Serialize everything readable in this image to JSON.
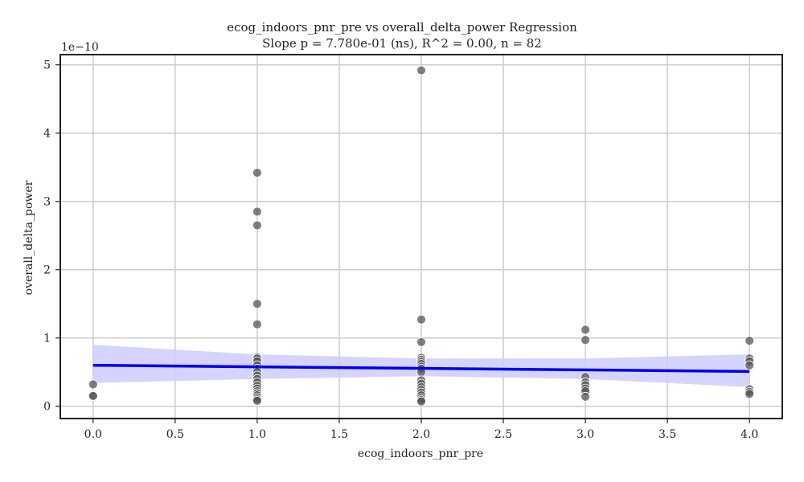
{
  "chart_data": {
    "type": "scatter",
    "title": "ecog_indoors_pnr_pre vs overall_delta_power Regression",
    "subtitle": "Slope p = 7.780e-01 (ns), R^2 = 0.00, n = 82",
    "xlabel": "ecog_indoors_pnr_pre",
    "ylabel": "overall_delta_power",
    "y_offset_label": "1e−10",
    "xlim": [
      -0.2,
      4.2
    ],
    "ylim": [
      -0.18,
      5.15
    ],
    "x_ticks": [
      0.0,
      0.5,
      1.0,
      1.5,
      2.0,
      2.5,
      3.0,
      3.5,
      4.0
    ],
    "x_tick_labels": [
      "0.0",
      "0.5",
      "1.0",
      "1.5",
      "2.0",
      "2.5",
      "3.0",
      "3.5",
      "4.0"
    ],
    "y_ticks": [
      0,
      1,
      2,
      3,
      4,
      5
    ],
    "y_tick_labels": [
      "0",
      "1",
      "2",
      "3",
      "4",
      "5"
    ],
    "grid": true,
    "points": [
      [
        0,
        0.32
      ],
      [
        0,
        0.16
      ],
      [
        0,
        0.15
      ],
      [
        1,
        3.42
      ],
      [
        1,
        2.85
      ],
      [
        1,
        2.65
      ],
      [
        1,
        1.5
      ],
      [
        1,
        1.2
      ],
      [
        1,
        0.72
      ],
      [
        1,
        0.7
      ],
      [
        1,
        0.66
      ],
      [
        1,
        0.6
      ],
      [
        1,
        0.55
      ],
      [
        1,
        0.5
      ],
      [
        1,
        0.45
      ],
      [
        1,
        0.4
      ],
      [
        1,
        0.35
      ],
      [
        1,
        0.3
      ],
      [
        1,
        0.26
      ],
      [
        1,
        0.22
      ],
      [
        1,
        0.19
      ],
      [
        1,
        0.16
      ],
      [
        1,
        0.13
      ],
      [
        1,
        0.1
      ],
      [
        1,
        0.08
      ],
      [
        2,
        4.92
      ],
      [
        2,
        1.27
      ],
      [
        2,
        0.94
      ],
      [
        2,
        0.71
      ],
      [
        2,
        0.68
      ],
      [
        2,
        0.65
      ],
      [
        2,
        0.62
      ],
      [
        2,
        0.58
      ],
      [
        2,
        0.55
      ],
      [
        2,
        0.5
      ],
      [
        2,
        0.38
      ],
      [
        2,
        0.33
      ],
      [
        2,
        0.28
      ],
      [
        2,
        0.24
      ],
      [
        2,
        0.2
      ],
      [
        2,
        0.16
      ],
      [
        2,
        0.12
      ],
      [
        2,
        0.09
      ],
      [
        2,
        0.07
      ],
      [
        3,
        1.12
      ],
      [
        3,
        0.97
      ],
      [
        3,
        0.43
      ],
      [
        3,
        0.35
      ],
      [
        3,
        0.31
      ],
      [
        3,
        0.26
      ],
      [
        3,
        0.22
      ],
      [
        3,
        0.14
      ],
      [
        4,
        0.96
      ],
      [
        4,
        0.7
      ],
      [
        4,
        0.66
      ],
      [
        4,
        0.6
      ],
      [
        4,
        0.25
      ],
      [
        4,
        0.21
      ],
      [
        4,
        0.18
      ]
    ],
    "point_color": "#555555",
    "regression": {
      "x": [
        0,
        4
      ],
      "y": [
        0.6,
        0.51
      ],
      "color": "#0000ee"
    },
    "confidence_band": {
      "x": [
        0,
        1,
        2,
        3,
        4
      ],
      "lower": [
        0.34,
        0.4,
        0.44,
        0.4,
        0.28
      ],
      "upper": [
        0.9,
        0.76,
        0.7,
        0.7,
        0.76
      ],
      "color": "#ccccff"
    }
  }
}
